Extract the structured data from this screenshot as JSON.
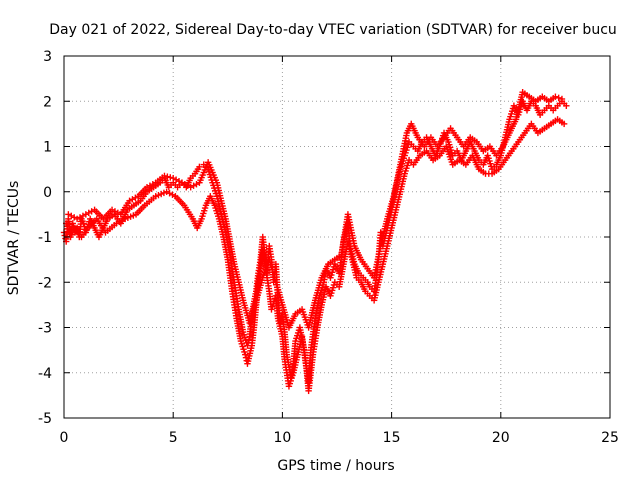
{
  "chart_data": {
    "type": "scatter",
    "title": "Day 021 of 2022, Sidereal Day-to-day VTEC variation (SDTVAR) for receiver bucu",
    "xlabel": "GPS time / hours",
    "ylabel": "SDTVAR / TECUs",
    "xlim": [
      0,
      25
    ],
    "ylim": [
      -5,
      3
    ],
    "xticks": [
      0,
      5,
      10,
      15,
      20,
      25
    ],
    "yticks": [
      -5,
      -4,
      -3,
      -2,
      -1,
      0,
      1,
      2,
      3
    ],
    "grid": true,
    "grid_style": "dotted",
    "marker": "+",
    "series": [
      {
        "color": "#ff0000",
        "points": [
          [
            0.0,
            -0.9
          ],
          [
            0.1,
            -1.1
          ],
          [
            0.2,
            -0.6
          ],
          [
            0.3,
            -0.9
          ],
          [
            0.4,
            -0.7
          ],
          [
            0.5,
            -0.9
          ],
          [
            0.6,
            -0.8
          ],
          [
            0.7,
            -1.0
          ],
          [
            0.8,
            -0.6
          ],
          [
            0.9,
            -0.7
          ],
          [
            1.0,
            -0.9
          ],
          [
            1.2,
            -0.6
          ],
          [
            1.4,
            -0.8
          ],
          [
            1.6,
            -1.0
          ],
          [
            1.8,
            -0.8
          ],
          [
            2.0,
            -0.6
          ],
          [
            2.3,
            -0.5
          ],
          [
            2.6,
            -0.7
          ],
          [
            2.9,
            -0.4
          ],
          [
            3.2,
            -0.3
          ],
          [
            3.5,
            -0.2
          ],
          [
            3.8,
            0.0
          ],
          [
            4.1,
            0.1
          ],
          [
            4.4,
            0.2
          ],
          [
            4.6,
            0.3
          ],
          [
            4.8,
            0.1
          ],
          [
            5.0,
            0.2
          ],
          [
            5.2,
            0.1
          ],
          [
            5.4,
            0.2
          ],
          [
            5.6,
            0.1
          ],
          [
            5.8,
            0.3
          ],
          [
            6.0,
            0.4
          ],
          [
            6.2,
            0.55
          ],
          [
            6.4,
            0.6
          ],
          [
            6.6,
            0.5
          ],
          [
            6.8,
            0.2
          ],
          [
            7.0,
            -0.1
          ],
          [
            7.2,
            -0.5
          ],
          [
            7.4,
            -0.9
          ],
          [
            7.6,
            -1.4
          ],
          [
            7.8,
            -2.0
          ],
          [
            8.0,
            -2.6
          ],
          [
            8.2,
            -3.1
          ],
          [
            8.4,
            -3.4
          ],
          [
            8.5,
            -3.2
          ],
          [
            8.6,
            -2.7
          ],
          [
            8.8,
            -2.2
          ],
          [
            8.9,
            -1.8
          ],
          [
            9.0,
            -1.5
          ],
          [
            9.1,
            -1.0
          ],
          [
            9.2,
            -1.4
          ],
          [
            9.3,
            -1.8
          ],
          [
            9.4,
            -1.2
          ],
          [
            9.5,
            -1.5
          ],
          [
            9.6,
            -2.0
          ],
          [
            9.7,
            -1.6
          ],
          [
            9.8,
            -2.4
          ],
          [
            9.9,
            -2.9
          ],
          [
            10.0,
            -2.7
          ],
          [
            10.1,
            -3.1
          ],
          [
            10.2,
            -3.6
          ],
          [
            10.4,
            -4.1
          ],
          [
            10.5,
            -3.8
          ],
          [
            10.6,
            -3.3
          ],
          [
            10.8,
            -3.0
          ],
          [
            11.0,
            -3.5
          ],
          [
            11.2,
            -4.2
          ],
          [
            11.3,
            -3.5
          ],
          [
            11.5,
            -2.8
          ],
          [
            11.7,
            -2.3
          ],
          [
            11.9,
            -2.0
          ],
          [
            12.0,
            -1.7
          ],
          [
            12.2,
            -1.9
          ],
          [
            12.4,
            -1.6
          ],
          [
            12.6,
            -1.8
          ],
          [
            12.8,
            -1.1
          ],
          [
            13.0,
            -0.7
          ],
          [
            13.1,
            -1.2
          ],
          [
            13.3,
            -1.6
          ],
          [
            13.5,
            -1.8
          ],
          [
            13.7,
            -1.9
          ],
          [
            13.9,
            -2.0
          ],
          [
            14.0,
            -2.1
          ],
          [
            14.2,
            -2.2
          ],
          [
            14.3,
            -1.9
          ],
          [
            14.4,
            -1.5
          ],
          [
            14.5,
            -0.9
          ],
          [
            14.6,
            -1.2
          ],
          [
            14.8,
            -0.8
          ],
          [
            15.0,
            -0.4
          ],
          [
            15.2,
            0.1
          ],
          [
            15.4,
            0.5
          ],
          [
            15.6,
            0.8
          ],
          [
            15.8,
            1.1
          ],
          [
            16.0,
            1.0
          ],
          [
            16.2,
            0.9
          ],
          [
            16.4,
            1.1
          ],
          [
            16.6,
            1.2
          ],
          [
            16.8,
            1.0
          ],
          [
            17.0,
            0.8
          ],
          [
            17.2,
            1.0
          ],
          [
            17.4,
            1.3
          ],
          [
            17.6,
            1.1
          ],
          [
            17.8,
            0.8
          ],
          [
            18.0,
            0.9
          ],
          [
            18.2,
            0.7
          ],
          [
            18.4,
            0.9
          ],
          [
            18.6,
            1.1
          ],
          [
            18.8,
            0.9
          ],
          [
            19.0,
            0.7
          ],
          [
            19.2,
            0.6
          ],
          [
            19.4,
            0.8
          ],
          [
            19.6,
            0.5
          ],
          [
            19.8,
            0.6
          ],
          [
            20.0,
            0.8
          ],
          [
            20.2,
            1.2
          ],
          [
            20.4,
            1.6
          ],
          [
            20.6,
            1.9
          ],
          [
            20.8,
            1.7
          ],
          [
            21.0,
            2.0
          ],
          [
            21.2,
            1.8
          ],
          [
            21.4,
            2.0
          ],
          [
            21.6,
            1.9
          ],
          [
            21.8,
            1.7
          ],
          [
            22.0,
            1.8
          ],
          [
            22.2,
            1.9
          ],
          [
            22.4,
            1.8
          ],
          [
            22.6,
            1.9
          ],
          [
            22.8,
            2.0
          ],
          [
            23.0,
            1.9
          ],
          [
            0.1,
            -0.7
          ],
          [
            0.3,
            -1.0
          ],
          [
            0.5,
            -0.8
          ],
          [
            0.8,
            -1.0
          ],
          [
            1.1,
            -0.8
          ],
          [
            1.5,
            -0.6
          ],
          [
            1.9,
            -0.9
          ],
          [
            2.4,
            -0.7
          ],
          [
            2.8,
            -0.6
          ],
          [
            3.3,
            -0.5
          ],
          [
            3.7,
            -0.3
          ],
          [
            4.2,
            -0.1
          ],
          [
            4.7,
            0.0
          ],
          [
            5.1,
            -0.1
          ],
          [
            5.5,
            -0.3
          ],
          [
            5.9,
            -0.6
          ],
          [
            6.1,
            -0.8
          ],
          [
            6.3,
            -0.6
          ],
          [
            6.5,
            -0.3
          ],
          [
            6.7,
            -0.1
          ],
          [
            6.9,
            -0.3
          ],
          [
            7.1,
            -0.6
          ],
          [
            7.3,
            -1.0
          ],
          [
            7.5,
            -1.5
          ],
          [
            7.7,
            -2.2
          ],
          [
            7.9,
            -2.8
          ],
          [
            8.1,
            -3.3
          ],
          [
            8.3,
            -3.6
          ],
          [
            8.4,
            -3.8
          ],
          [
            8.6,
            -3.4
          ],
          [
            8.7,
            -3.0
          ],
          [
            8.8,
            -2.5
          ],
          [
            8.9,
            -2.0
          ],
          [
            9.0,
            -1.7
          ],
          [
            9.1,
            -1.3
          ],
          [
            9.2,
            -1.6
          ],
          [
            9.4,
            -2.2
          ],
          [
            9.5,
            -2.6
          ],
          [
            9.7,
            -2.3
          ],
          [
            9.8,
            -2.8
          ],
          [
            10.0,
            -3.2
          ],
          [
            10.1,
            -3.7
          ],
          [
            10.3,
            -4.3
          ],
          [
            10.5,
            -4.0
          ],
          [
            10.7,
            -3.6
          ],
          [
            10.9,
            -3.2
          ],
          [
            11.1,
            -3.9
          ],
          [
            11.2,
            -4.4
          ],
          [
            11.4,
            -3.6
          ],
          [
            11.6,
            -3.0
          ],
          [
            11.8,
            -2.5
          ],
          [
            12.0,
            -2.1
          ],
          [
            12.2,
            -2.3
          ],
          [
            12.4,
            -2.0
          ],
          [
            12.6,
            -2.1
          ],
          [
            12.8,
            -1.6
          ],
          [
            13.0,
            -1.1
          ],
          [
            13.2,
            -1.5
          ],
          [
            13.4,
            -1.9
          ],
          [
            13.6,
            -2.0
          ],
          [
            13.8,
            -2.2
          ],
          [
            14.0,
            -2.3
          ],
          [
            14.2,
            -2.4
          ],
          [
            14.4,
            -2.0
          ],
          [
            14.6,
            -1.6
          ],
          [
            14.8,
            -1.2
          ],
          [
            15.0,
            -0.8
          ],
          [
            15.2,
            -0.4
          ],
          [
            15.4,
            0.0
          ],
          [
            15.6,
            0.4
          ],
          [
            15.8,
            0.7
          ],
          [
            16.0,
            0.6
          ],
          [
            16.3,
            0.8
          ],
          [
            16.6,
            0.9
          ],
          [
            16.9,
            0.7
          ],
          [
            17.2,
            0.8
          ],
          [
            17.5,
            1.0
          ],
          [
            17.8,
            0.6
          ],
          [
            18.1,
            0.7
          ],
          [
            18.4,
            0.6
          ],
          [
            18.7,
            0.8
          ],
          [
            19.0,
            0.5
          ],
          [
            19.3,
            0.4
          ],
          [
            19.6,
            0.4
          ],
          [
            19.9,
            0.5
          ],
          [
            20.2,
            0.7
          ],
          [
            20.5,
            0.9
          ],
          [
            20.8,
            1.1
          ],
          [
            21.1,
            1.3
          ],
          [
            21.4,
            1.5
          ],
          [
            21.7,
            1.3
          ],
          [
            22.0,
            1.4
          ],
          [
            22.3,
            1.5
          ],
          [
            22.6,
            1.6
          ],
          [
            22.9,
            1.5
          ],
          [
            0.2,
            -0.5
          ],
          [
            0.6,
            -0.6
          ],
          [
            1.0,
            -0.5
          ],
          [
            1.4,
            -0.4
          ],
          [
            1.8,
            -0.6
          ],
          [
            2.2,
            -0.4
          ],
          [
            2.6,
            -0.5
          ],
          [
            3.0,
            -0.2
          ],
          [
            3.4,
            -0.1
          ],
          [
            3.8,
            0.1
          ],
          [
            4.2,
            0.2
          ],
          [
            4.6,
            0.35
          ],
          [
            5.0,
            0.3
          ],
          [
            5.4,
            0.2
          ],
          [
            5.8,
            0.1
          ],
          [
            6.2,
            0.2
          ],
          [
            6.6,
            0.65
          ],
          [
            7.0,
            0.2
          ],
          [
            7.4,
            -0.6
          ],
          [
            7.8,
            -1.6
          ],
          [
            8.2,
            -2.4
          ],
          [
            8.5,
            -2.9
          ],
          [
            8.8,
            -2.4
          ],
          [
            9.1,
            -1.9
          ],
          [
            9.4,
            -1.5
          ],
          [
            9.7,
            -2.0
          ],
          [
            10.0,
            -2.5
          ],
          [
            10.3,
            -3.0
          ],
          [
            10.6,
            -2.7
          ],
          [
            10.9,
            -2.6
          ],
          [
            11.2,
            -3.0
          ],
          [
            11.5,
            -2.4
          ],
          [
            11.8,
            -1.9
          ],
          [
            12.1,
            -1.6
          ],
          [
            12.4,
            -1.5
          ],
          [
            12.7,
            -1.4
          ],
          [
            13.0,
            -0.5
          ],
          [
            13.3,
            -1.2
          ],
          [
            13.6,
            -1.5
          ],
          [
            13.9,
            -1.7
          ],
          [
            14.2,
            -1.9
          ],
          [
            14.5,
            -1.2
          ],
          [
            14.8,
            -0.6
          ],
          [
            15.1,
            -0.1
          ],
          [
            15.4,
            0.6
          ],
          [
            15.7,
            1.3
          ],
          [
            15.9,
            1.5
          ],
          [
            16.2,
            1.2
          ],
          [
            16.5,
            1.0
          ],
          [
            16.8,
            1.2
          ],
          [
            17.1,
            1.0
          ],
          [
            17.4,
            1.2
          ],
          [
            17.7,
            1.4
          ],
          [
            18.0,
            1.2
          ],
          [
            18.3,
            1.0
          ],
          [
            18.6,
            1.2
          ],
          [
            18.9,
            1.1
          ],
          [
            19.2,
            0.9
          ],
          [
            19.5,
            1.0
          ],
          [
            19.8,
            0.8
          ],
          [
            20.1,
            1.0
          ],
          [
            20.4,
            1.3
          ],
          [
            20.7,
            1.6
          ],
          [
            21.0,
            2.2
          ],
          [
            21.3,
            2.1
          ],
          [
            21.6,
            2.0
          ],
          [
            21.9,
            2.1
          ],
          [
            22.2,
            2.0
          ],
          [
            22.5,
            2.1
          ],
          [
            22.8,
            2.05
          ]
        ]
      }
    ]
  }
}
